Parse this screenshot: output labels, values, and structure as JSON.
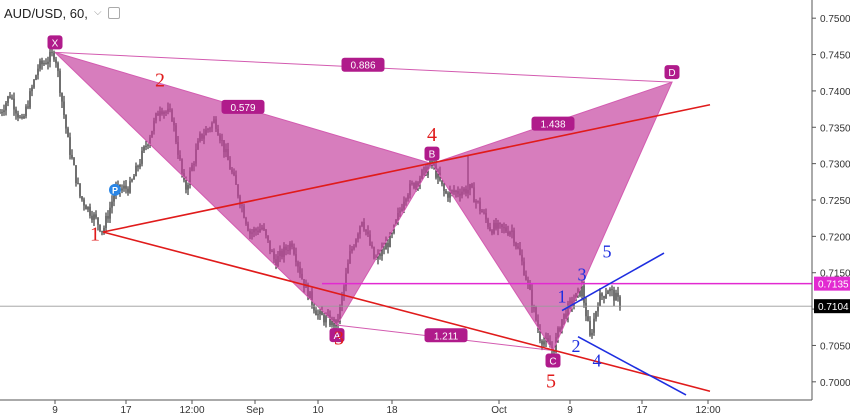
{
  "header": {
    "title": "AUD/USD, 60,",
    "menu_icon": "chevron-down-icon",
    "toggle_icon": "checkbox-icon"
  },
  "colors": {
    "pattern_fill": "#c4409e",
    "pattern_line": "#d35bb0",
    "badge": "#b01b8b",
    "trend_red": "#e01b1b",
    "trend_blue": "#1e2ee0",
    "level_magenta": "#e22ad1",
    "candle": "#111111",
    "price_tag": "#000000"
  },
  "chart_data": {
    "type": "candlestick",
    "symbol": "AUD/USD",
    "timeframe": "60",
    "x_ticks": [
      "9",
      "17",
      "12:00",
      "Sep",
      "10",
      "18",
      "Oct",
      "9",
      "17",
      "12:00"
    ],
    "y_ticks": [
      0.7,
      0.705,
      0.71,
      0.715,
      0.72,
      0.725,
      0.73,
      0.735,
      0.74,
      0.745,
      0.75
    ],
    "y_tick_labels": [
      "0.7000",
      "0.7050",
      "0.7100",
      "0.7150",
      "0.7200",
      "0.7250",
      "0.7300",
      "0.7350",
      "0.7400",
      "0.7450",
      "0.7500"
    ],
    "ylim": [
      0.6975,
      0.7525
    ],
    "current_price": "0.7104",
    "level_price": "0.7135",
    "pattern_points": [
      {
        "label": "X",
        "bar": 55,
        "price": 0.7453
      },
      {
        "label": "A",
        "bar": 337,
        "price": 0.7078
      },
      {
        "label": "B",
        "bar": 432,
        "price": 0.73
      },
      {
        "label": "C",
        "bar": 553,
        "price": 0.7043
      },
      {
        "label": "D",
        "bar": 672,
        "price": 0.7412
      }
    ],
    "ratios": [
      {
        "label": "0.886",
        "bar": 363,
        "price": 0.7436
      },
      {
        "label": "0.579",
        "bar": 243,
        "price": 0.7378
      },
      {
        "label": "1.438",
        "bar": 553,
        "price": 0.7355
      },
      {
        "label": "1.211",
        "bar": 446,
        "price": 0.7064
      }
    ],
    "wave_labels_red": [
      {
        "label": "1",
        "bar": 95,
        "price": 0.7194
      },
      {
        "label": "2",
        "bar": 160,
        "price": 0.7406
      },
      {
        "label": "3",
        "bar": 339,
        "price": 0.7051
      },
      {
        "label": "4",
        "bar": 432,
        "price": 0.7331
      },
      {
        "label": "5",
        "bar": 551,
        "price": 0.6992
      }
    ],
    "wave_labels_blue": [
      {
        "label": "1",
        "bar": 562,
        "price": 0.7109
      },
      {
        "label": "2",
        "bar": 576,
        "price": 0.7041
      },
      {
        "label": "3",
        "bar": 582,
        "price": 0.7139
      },
      {
        "label": "4",
        "bar": 597,
        "price": 0.7021
      },
      {
        "label": "5",
        "bar": 607,
        "price": 0.7171
      }
    ],
    "marker_p": {
      "label": "P",
      "bar": 115,
      "price": 0.7264
    },
    "trendlines_red": [
      {
        "from": {
          "bar": 103,
          "price": 0.7206
        },
        "to": {
          "bar": 710,
          "price": 0.7381
        }
      },
      {
        "from": {
          "bar": 103,
          "price": 0.7206
        },
        "to": {
          "bar": 710,
          "price": 0.6987
        }
      }
    ],
    "trendlines_blue": [
      {
        "from": {
          "bar": 562,
          "price": 0.7098
        },
        "to": {
          "bar": 664,
          "price": 0.7177
        }
      },
      {
        "from": {
          "bar": 578,
          "price": 0.7062
        },
        "to": {
          "bar": 686,
          "price": 0.6982
        }
      }
    ],
    "xd_line": {
      "from": {
        "bar": 55,
        "price": 0.7453
      },
      "to": {
        "bar": 672,
        "price": 0.7412
      }
    },
    "ac_line": {
      "from": {
        "bar": 337,
        "price": 0.7078
      },
      "to": {
        "bar": 553,
        "price": 0.7043
      }
    },
    "level_line": {
      "from_bar": 322,
      "price": 0.7135
    }
  }
}
